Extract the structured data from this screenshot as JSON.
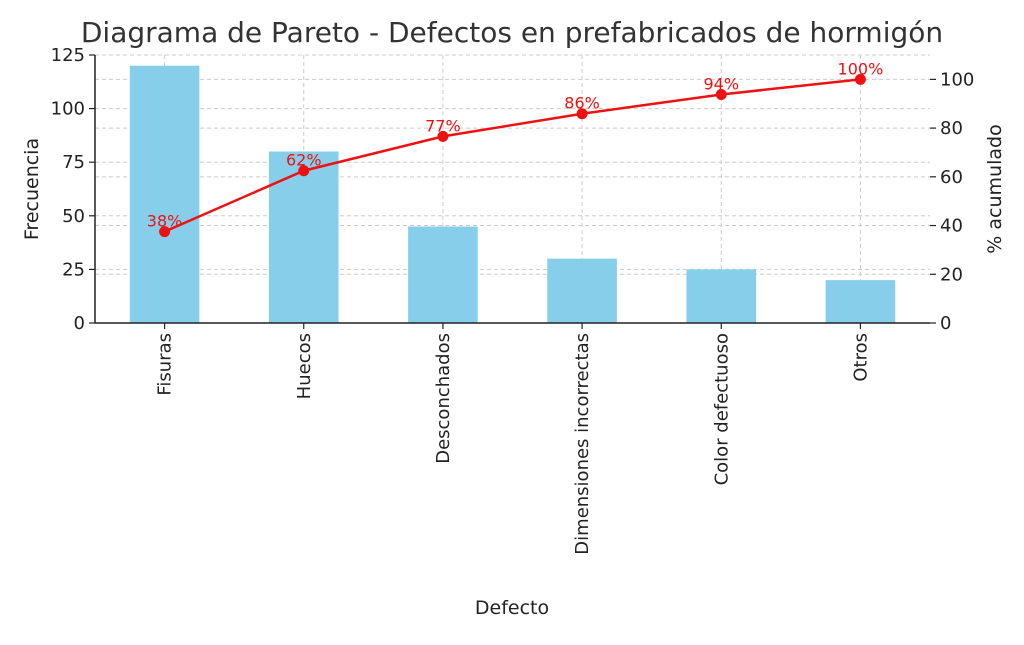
{
  "chart_data": {
    "type": "bar",
    "title": "Diagrama de Pareto - Defectos en prefabricados de hormigón",
    "xlabel": "Defecto",
    "ylabel": "Frecuencia",
    "y2label": "% acumulado",
    "categories": [
      "Fisuras",
      "Huecos",
      "Desconchados",
      "Dimensiones incorrectas",
      "Color defectuoso",
      "Otros"
    ],
    "series": [
      {
        "type": "bar",
        "axis": "left",
        "values": [
          120,
          80,
          45,
          30,
          25,
          20
        ]
      },
      {
        "type": "line",
        "axis": "right",
        "values": [
          37.5,
          62.5,
          76.6,
          85.9,
          93.8,
          100
        ],
        "labels": [
          "38%",
          "62%",
          "77%",
          "86%",
          "94%",
          "100%"
        ]
      }
    ],
    "ylim": [
      0,
      125
    ],
    "y2lim": [
      0,
      110
    ],
    "yticks": [
      "0",
      "25",
      "50",
      "75",
      "100",
      "125"
    ],
    "y2ticks": [
      "0",
      "20",
      "40",
      "60",
      "80",
      "100"
    ],
    "grid": true,
    "colors": {
      "bar": "#87ceeb",
      "line": "#ee1111",
      "grid": "#cccccc",
      "axis": "#222222"
    }
  }
}
